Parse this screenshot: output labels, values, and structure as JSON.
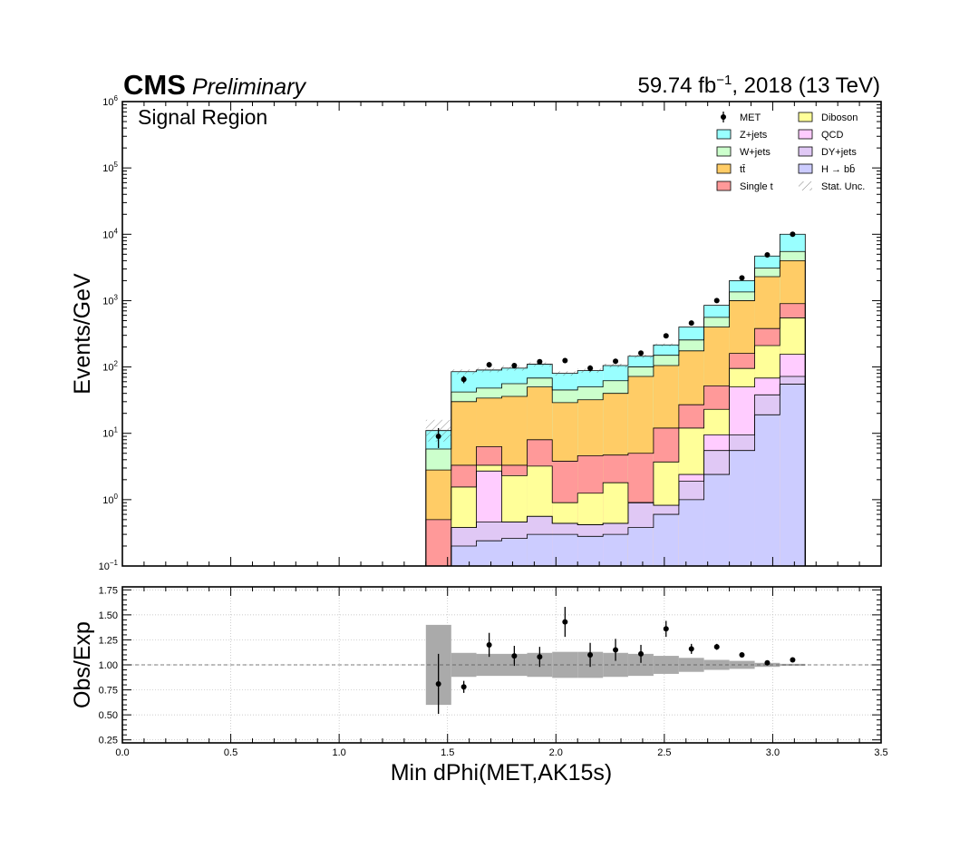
{
  "header": {
    "experiment": "CMS",
    "status": "Preliminary",
    "lumi_value": "59.74 fb",
    "lumi_exponent": "−1",
    "lumi_suffix": ", 2018 (13 TeV)"
  },
  "chart_data": {
    "type": "bar",
    "subtype": "stacked-histogram-with-ratio",
    "region_label": "Signal Region",
    "xlabel": "Min dPhi(MET,AK15s)",
    "ylabel": "Events/GeV",
    "ratio_ylabel": "Obs/Exp",
    "xlim": [
      0.0,
      3.5
    ],
    "ylim": [
      0.1,
      1000000
    ],
    "yscale": "log",
    "ratio_ylim": [
      0.22,
      1.78
    ],
    "x_ticks": [
      "0.0",
      "0.5",
      "1.0",
      "1.5",
      "2.0",
      "2.5",
      "3.0",
      "3.5"
    ],
    "y_ticks": [
      {
        "value": 0.1,
        "base": "10",
        "exp": "−1"
      },
      {
        "value": 1,
        "base": "10",
        "exp": "0"
      },
      {
        "value": 10,
        "base": "10",
        "exp": "1"
      },
      {
        "value": 100,
        "base": "10",
        "exp": "2"
      },
      {
        "value": 1000,
        "base": "10",
        "exp": "3"
      },
      {
        "value": 10000,
        "base": "10",
        "exp": "4"
      },
      {
        "value": 100000,
        "base": "10",
        "exp": "5"
      },
      {
        "value": 1000000,
        "base": "10",
        "exp": "6"
      }
    ],
    "ratio_ticks": [
      "0.25",
      "0.50",
      "0.75",
      "1.00",
      "1.25",
      "1.50",
      "1.75"
    ],
    "bin_edges": [
      1.4,
      1.517,
      1.633,
      1.75,
      1.867,
      1.983,
      2.1,
      2.217,
      2.333,
      2.45,
      2.567,
      2.683,
      2.8,
      2.917,
      3.033,
      3.15
    ],
    "stack_colors": {
      "H_bb": "#ccccff",
      "DY_jets": "#e0c8f5",
      "QCD": "#ffccff",
      "Diboson": "#ffff99",
      "Single_t": "#ff9999",
      "ttbar": "#ffcc66",
      "W_jets": "#ccffcc",
      "Z_jets": "#99ffff"
    },
    "legend": [
      {
        "key": "MET",
        "label": "MET",
        "kind": "marker"
      },
      {
        "key": "Diboson",
        "label": "Diboson",
        "kind": "box"
      },
      {
        "key": "Z_jets",
        "label": "Z+jets",
        "kind": "box"
      },
      {
        "key": "QCD",
        "label": "QCD",
        "kind": "box"
      },
      {
        "key": "W_jets",
        "label": "W+jets",
        "kind": "box"
      },
      {
        "key": "DY_jets",
        "label": "DY+jets",
        "kind": "box"
      },
      {
        "key": "ttbar",
        "label": "tt̄",
        "kind": "box"
      },
      {
        "key": "H_bb",
        "label": "H → bb̄",
        "kind": "box"
      },
      {
        "key": "Single_t",
        "label": "Single t",
        "kind": "box"
      },
      {
        "key": "stat",
        "label": "Stat. Unc.",
        "kind": "hatch"
      }
    ],
    "stack_cumulative": [
      {
        "bin": 0,
        "H_bb": 0.0,
        "DY_jets": 0.0,
        "QCD": 0.0,
        "Diboson": 0.0,
        "Single_t": 0.5,
        "ttbar": 2.8,
        "W_jets": 5.8,
        "Z_jets": 11.0
      },
      {
        "bin": 1,
        "H_bb": 0.2,
        "DY_jets": 0.38,
        "QCD": 0.38,
        "Diboson": 1.55,
        "Single_t": 3.3,
        "ttbar": 30,
        "W_jets": 42,
        "Z_jets": 85
      },
      {
        "bin": 2,
        "H_bb": 0.24,
        "DY_jets": 0.46,
        "QCD": 2.7,
        "Diboson": 3.3,
        "Single_t": 6.3,
        "ttbar": 34,
        "W_jets": 48,
        "Z_jets": 90
      },
      {
        "bin": 3,
        "H_bb": 0.26,
        "DY_jets": 0.46,
        "QCD": 0.46,
        "Diboson": 2.3,
        "Single_t": 3.3,
        "ttbar": 36,
        "W_jets": 56,
        "Z_jets": 96
      },
      {
        "bin": 4,
        "H_bb": 0.3,
        "DY_jets": 0.56,
        "QCD": 0.56,
        "Diboson": 3.2,
        "Single_t": 8.0,
        "ttbar": 50,
        "W_jets": 68,
        "Z_jets": 110
      },
      {
        "bin": 5,
        "H_bb": 0.3,
        "DY_jets": 0.44,
        "QCD": 0.44,
        "Diboson": 0.9,
        "Single_t": 3.8,
        "ttbar": 29,
        "W_jets": 45,
        "Z_jets": 80
      },
      {
        "bin": 6,
        "H_bb": 0.28,
        "DY_jets": 0.42,
        "QCD": 0.42,
        "Diboson": 1.25,
        "Single_t": 4.6,
        "ttbar": 32,
        "W_jets": 50,
        "Z_jets": 88
      },
      {
        "bin": 7,
        "H_bb": 0.3,
        "DY_jets": 0.44,
        "QCD": 0.44,
        "Diboson": 1.8,
        "Single_t": 4.7,
        "ttbar": 40,
        "W_jets": 62,
        "Z_jets": 105
      },
      {
        "bin": 8,
        "H_bb": 0.38,
        "DY_jets": 0.9,
        "QCD": 0.9,
        "Diboson": 0.9,
        "Single_t": 5.0,
        "ttbar": 72,
        "W_jets": 100,
        "Z_jets": 145
      },
      {
        "bin": 9,
        "H_bb": 0.6,
        "DY_jets": 0.82,
        "QCD": 0.82,
        "Diboson": 3.7,
        "Single_t": 12,
        "ttbar": 105,
        "W_jets": 150,
        "Z_jets": 215
      },
      {
        "bin": 10,
        "H_bb": 1.0,
        "DY_jets": 1.9,
        "QCD": 2.4,
        "Diboson": 12,
        "Single_t": 27,
        "ttbar": 175,
        "W_jets": 255,
        "Z_jets": 400
      },
      {
        "bin": 11,
        "H_bb": 2.4,
        "DY_jets": 5.5,
        "QCD": 9.5,
        "Diboson": 23,
        "Single_t": 52,
        "ttbar": 400,
        "W_jets": 560,
        "Z_jets": 850
      },
      {
        "bin": 12,
        "H_bb": 5.5,
        "DY_jets": 9.5,
        "QCD": 50,
        "Diboson": 95,
        "Single_t": 160,
        "ttbar": 1000,
        "W_jets": 1350,
        "Z_jets": 2000
      },
      {
        "bin": 13,
        "H_bb": 19,
        "DY_jets": 38,
        "QCD": 68,
        "Diboson": 210,
        "Single_t": 380,
        "ttbar": 2300,
        "W_jets": 3100,
        "Z_jets": 4700
      },
      {
        "bin": 14,
        "H_bb": 55,
        "DY_jets": 72,
        "QCD": 155,
        "Diboson": 550,
        "Single_t": 900,
        "ttbar": 4000,
        "W_jets": 5500,
        "Z_jets": 10000
      }
    ],
    "stat_unc_bands": [
      {
        "bin": 0,
        "low": 7.5,
        "high": 16
      },
      {
        "bin": 1,
        "low": 78,
        "high": 92
      },
      {
        "bin": 2,
        "low": 83,
        "high": 97
      },
      {
        "bin": 3,
        "low": 88,
        "high": 104
      },
      {
        "bin": 4,
        "low": 102,
        "high": 118
      },
      {
        "bin": 5,
        "low": 74,
        "high": 86
      },
      {
        "bin": 6,
        "low": 82,
        "high": 94
      },
      {
        "bin": 7,
        "low": 98,
        "high": 112
      },
      {
        "bin": 8,
        "low": 137,
        "high": 153
      },
      {
        "bin": 9,
        "low": 205,
        "high": 225
      }
    ],
    "data_points": [
      {
        "x": 1.458,
        "y": 9.0,
        "err": 3.0
      },
      {
        "x": 1.575,
        "y": 65,
        "err": 8
      },
      {
        "x": 1.692,
        "y": 108,
        "err": 10
      },
      {
        "x": 1.808,
        "y": 105,
        "err": 10
      },
      {
        "x": 1.925,
        "y": 120,
        "err": 11
      },
      {
        "x": 2.042,
        "y": 125,
        "err": 11
      },
      {
        "x": 2.158,
        "y": 96,
        "err": 10
      },
      {
        "x": 2.275,
        "y": 122,
        "err": 11
      },
      {
        "x": 2.392,
        "y": 162,
        "err": 13
      },
      {
        "x": 2.508,
        "y": 295,
        "err": 17
      },
      {
        "x": 2.625,
        "y": 460,
        "err": 21
      },
      {
        "x": 2.742,
        "y": 1000,
        "err": 32
      },
      {
        "x": 2.858,
        "y": 2200,
        "err": 47
      },
      {
        "x": 2.975,
        "y": 4900,
        "err": 70
      },
      {
        "x": 3.092,
        "y": 10000,
        "err": 100
      }
    ],
    "ratio_points": [
      {
        "x": 1.458,
        "y": 0.81,
        "err": 0.3
      },
      {
        "x": 1.575,
        "y": 0.78,
        "err": 0.06
      },
      {
        "x": 1.692,
        "y": 1.2,
        "err": 0.12
      },
      {
        "x": 1.808,
        "y": 1.09,
        "err": 0.1
      },
      {
        "x": 1.925,
        "y": 1.08,
        "err": 0.1
      },
      {
        "x": 2.042,
        "y": 1.43,
        "err": 0.15
      },
      {
        "x": 2.158,
        "y": 1.1,
        "err": 0.12
      },
      {
        "x": 2.275,
        "y": 1.15,
        "err": 0.11
      },
      {
        "x": 2.392,
        "y": 1.11,
        "err": 0.09
      },
      {
        "x": 2.508,
        "y": 1.36,
        "err": 0.08
      },
      {
        "x": 2.625,
        "y": 1.16,
        "err": 0.05
      },
      {
        "x": 2.742,
        "y": 1.18,
        "err": 0.03
      },
      {
        "x": 2.858,
        "y": 1.1,
        "err": 0.02
      },
      {
        "x": 2.975,
        "y": 1.02,
        "err": 0.015
      },
      {
        "x": 3.092,
        "y": 1.05,
        "err": 0.01
      }
    ],
    "ratio_unc": [
      0.4,
      0.12,
      0.11,
      0.11,
      0.12,
      0.13,
      0.13,
      0.12,
      0.11,
      0.09,
      0.07,
      0.05,
      0.04,
      0.02,
      0.01
    ],
    "ratio_reference": 1.0,
    "grid": "ratio-panel-dotted"
  }
}
